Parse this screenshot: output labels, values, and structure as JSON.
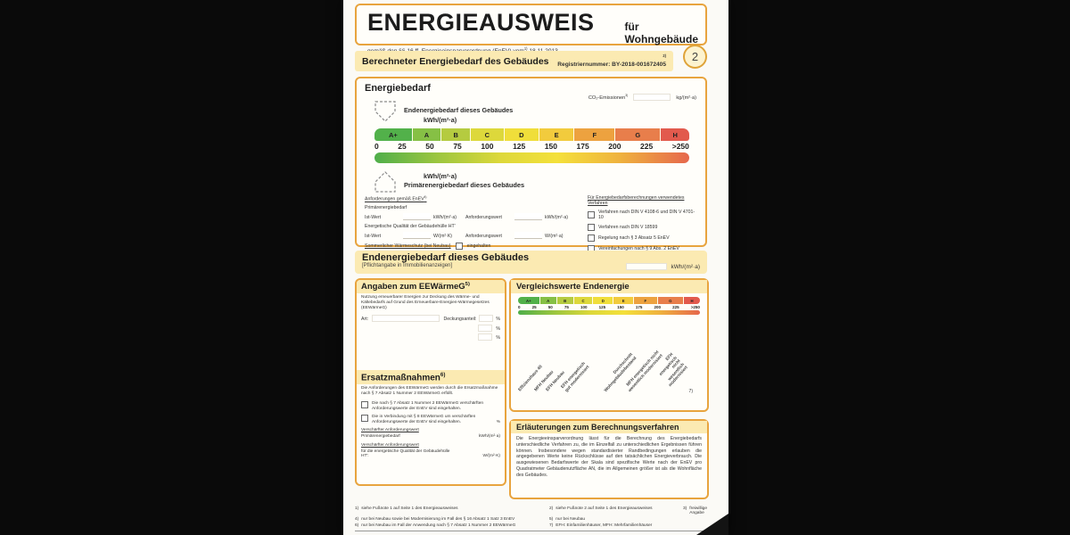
{
  "page": {
    "badge": "2"
  },
  "colors": {
    "accent_border": "#e8a43e",
    "band_yellow": "#fbeab2",
    "scale_colors": [
      "#52b14a",
      "#86c045",
      "#b5cb40",
      "#ddd83b",
      "#f0de3a",
      "#f2cb3d",
      "#eda23f",
      "#e87e4b",
      "#e25a4d"
    ]
  },
  "header": {
    "title": "ENERGIEAUSWEIS",
    "subtitle": "für Wohngebäude",
    "law_pre": "gemäß den §§ 16 ff. Energieeinsparverordnung (EnEV) vom",
    "law_sup": "1)",
    "law_date": "18.11.2013"
  },
  "section_bar": {
    "title": "Berechneter Energiebedarf des Gebäudes",
    "reg_sup": "2)",
    "reg_label": "Registriernummer:",
    "reg_value": "BY-2018-001672405"
  },
  "scale": {
    "classes": [
      "A+",
      "A",
      "B",
      "C",
      "D",
      "E",
      "F",
      "G",
      "H"
    ],
    "ticks": [
      "0",
      "25",
      "50",
      "75",
      "100",
      "125",
      "150",
      "175",
      "200",
      "225",
      ">250"
    ]
  },
  "energiebedarf": {
    "title": "Energiebedarf",
    "co2_label": "CO₂-Emissionen",
    "co2_sup": "3)",
    "co2_unit": "kg/(m²·a)",
    "end_label": "Endenergiebedarf dieses Gebäudes",
    "end_unit": "kWh/(m²·a)",
    "prim_unit": "kWh/(m²·a)",
    "prim_label": "Primärenergiebedarf dieses Gebäudes",
    "anforderungen": {
      "heading": "Anforderungen gemäß EnEV",
      "heading_sup": "4)",
      "prim_label": "Primärenergiebedarf",
      "row1_ist": "Ist-Wert",
      "row1_unit1": "kWh/(m²·a)",
      "row1_anf": "Anforderungswert",
      "row1_unit2": "kWh/(m²·a)",
      "huelle_label": "Energetische Qualität der Gebäudehülle HT'",
      "row2_ist": "Ist-Wert",
      "row2_unit1": "W/(m²·K)",
      "row2_anf": "Anforderungswert",
      "row2_unit2": "W/(m²·a)",
      "sommer_label": "Sommerlicher Wärmeschutz (bei Neubau)",
      "sommer_check": "eingehalten"
    },
    "verfahren": {
      "heading": "Für Energiebedarfsberechnungen verwendetes Verfahren",
      "items": [
        "Verfahren nach DIN V 4108-6 und DIN V 4701-10",
        "Verfahren nach DIN V 18599",
        "Regelung nach § 3 Absatz 5 EnEV",
        "Vereinfachungen nach § 9 Abs. 2 EnEV"
      ]
    }
  },
  "endenergie_bar": {
    "title": "Endenergiebedarf dieses Gebäudes",
    "subtitle": "[Pflichtangabe in Immobilienanzeigen]",
    "unit": "kWh/(m²·a)"
  },
  "eewaermeg": {
    "title": "Angaben zum EEWärmeG",
    "title_sup": "5)",
    "body": "Nutzung erneuerbarer Energien zur Deckung des Wärme- und Kältebedarfs auf Grund des Erneuerbare-Energien-Wärmegesetzes (EEWärmeG)",
    "art_label": "Art:",
    "deckung_label": "Deckungsanteil:",
    "percent": "%"
  },
  "ersatz": {
    "title": "Ersatzmaßnahmen",
    "title_sup": "6)",
    "body": "Die Anforderungen des EEWärmeG werden durch die Ersatzmaßnahme nach § 7 Absatz 1 Nummer 2 EEWärmeG erfüllt.",
    "check1": "Die nach § 7 Absatz 1 Nummer 2 EEWärmeG verschärften Anforderungswerte der EnEV sind eingehalten.",
    "check2": "Die in Verbindung mit § 8 EEWärmeG um verschärften Anforderungswerte der EnEV sind eingehalten.",
    "check2_pct": "%",
    "versch1_label": "Verschärfter Anforderungswert",
    "versch1_sub": "Primärenergiebedarf",
    "versch1_unit": "kWh/(m²·a)",
    "versch2_label": "Verschärfter Anforderungswert",
    "versch2_sub": "für die energetische Qualität der Gebäudehülle HT':",
    "versch2_unit": "W/(m²·K)"
  },
  "vergleich": {
    "title": "Vergleichswerte Endenergie",
    "labels": [
      "Effizienzhaus 40",
      "MFH Neubau",
      "EFH Neubau",
      "EFH energetisch\ngut modernisiert",
      "Durchschnitt\nWohngebäudebestand",
      "MFH energetisch nicht\nwesentlich modernisiert",
      "EFH energetisch nicht\nwesentlich modernisiert"
    ],
    "footnote_sup": "7)"
  },
  "erlaeuterungen": {
    "title": "Erläuterungen zum Berechnungsverfahren",
    "body": "Die Energieeinsparverordnung lässt für die Berechnung des Energiebedarfs unterschiedliche Verfahren zu, die im Einzelfall zu unterschiedlichen Ergebnissen führen können. Insbesondere wegen standardisierter Randbedingungen erlauben die angegebenen Werte keine Rückschlüsse auf den tatsächlichen Energieverbrauch. Die ausgewiesenen Bedarfswerte der Skala sind spezifische Werte nach der EnEV pro Quadratmeter Gebäudenutzfläche AN, die im Allgemeinen größer ist als die Wohnfläche des Gebäudes."
  },
  "footnotes": [
    {
      "sup": "1)",
      "text": "siehe Fußnote 1 auf Seite 1 des Energieausweises"
    },
    {
      "sup": "2)",
      "text": "siehe Fußnote 2 auf Seite 1 des Energieausweises"
    },
    {
      "sup": "3)",
      "text": "freiwillige Angabe"
    },
    {
      "sup": "4)",
      "text": "nur bei Neubau sowie bei Modernisierung im Fall des § 16 Absatz 1 Satz 3 EnEV"
    },
    {
      "sup": "5)",
      "text": "nur bei Neubau"
    },
    {
      "sup": "6)",
      "text": "nur bei Neubau im Fall der Anwendung nach § 7 Absatz 1 Nummer 2 EEWärmeG"
    },
    {
      "sup": "7)",
      "text": "EFH: Einfamilienhäuser, MFH: Mehrfamilienhäuser"
    }
  ]
}
